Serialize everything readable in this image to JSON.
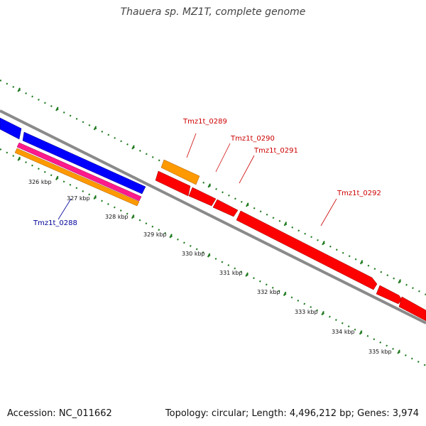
{
  "title": "Thauera sp. MZ1T, complete genome",
  "accession": "Accession: NC_011662",
  "summary": "Topology: circular; Length: 4,496,212 bp; Genes: 3,974",
  "colors": {
    "backbone": "#8a8a8a",
    "ticks": "#1f7a1f",
    "cds": "#ff0000",
    "gene_blue": "#0000ff",
    "gene_orange": "#ff9900",
    "gene_magenta": "#ff1a8c",
    "label_red": "#cc0000",
    "label_blue": "#000099"
  },
  "ruler": {
    "unit": "kbp",
    "labels": [
      "326 kbp",
      "327 kbp",
      "328 kbp",
      "329 kbp",
      "330 kbp",
      "331 kbp",
      "332 kbp",
      "333 kbp",
      "334 kbp",
      "335 kbp"
    ]
  },
  "gene_labels": {
    "blue": [
      "Tmz1t_0288"
    ],
    "red": [
      "Tmz1t_0289",
      "Tmz1t_0290",
      "Tmz1t_0291",
      "Tmz1t_0292"
    ]
  }
}
